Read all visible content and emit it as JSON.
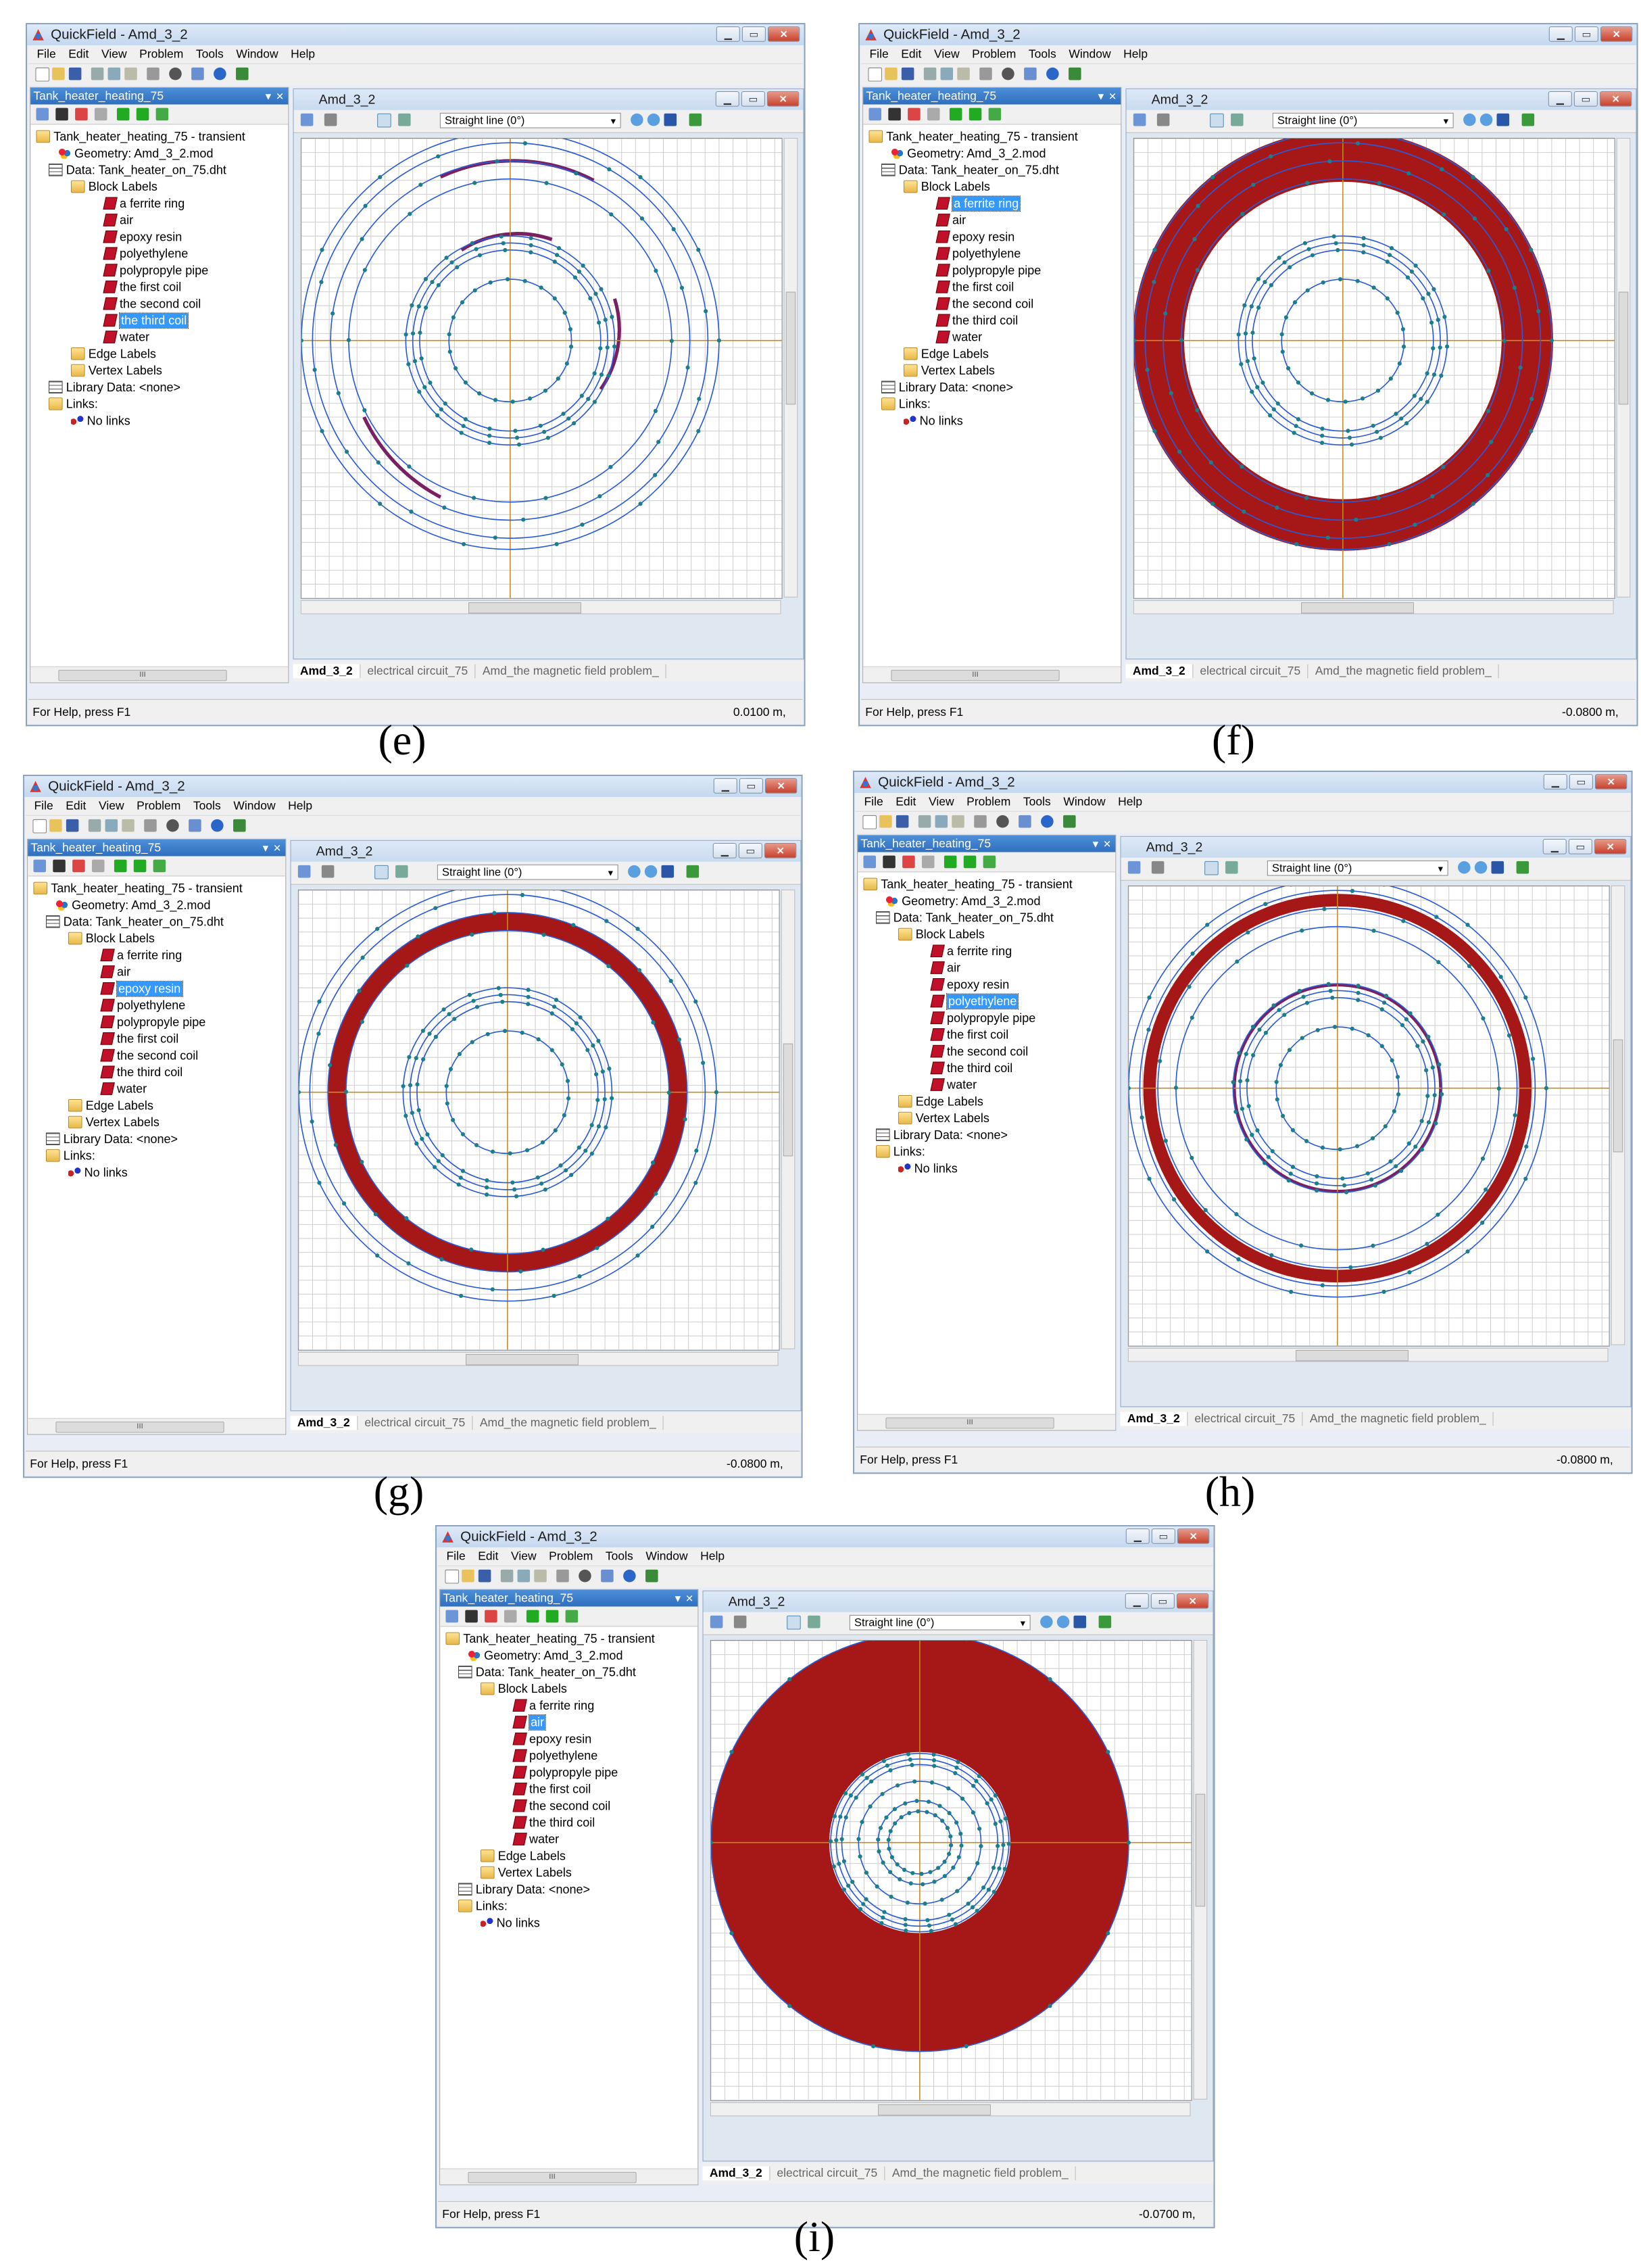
{
  "app": {
    "title": "QuickField - Amd_3_2",
    "menu": [
      "File",
      "Edit",
      "View",
      "Problem",
      "Tools",
      "Window",
      "Help"
    ],
    "sidebar_title": "Tank_heater_heating_75",
    "document_title": "Amd_3_2",
    "draw_mode": "Straight line (0°)",
    "tabs": [
      "Amd_3_2",
      "electrical circuit_75",
      "Amd_the magnetic field problem_"
    ],
    "status_help": "For Help, press F1",
    "scroll_thumb": "III",
    "tree": {
      "problem": "Tank_heater_heating_75 - transient",
      "geometry": "Geometry: Amd_3_2.mod",
      "data": "Data: Tank_heater_on_75.dht",
      "block_labels": "Block Labels",
      "blocks": [
        "a ferrite ring",
        "air",
        "epoxy resin",
        "polyethylene",
        "polypropyle pipe",
        "the first coil",
        "the second coil",
        "the third coil",
        "water"
      ],
      "edge_labels": "Edge Labels",
      "vertex_labels": "Vertex Labels",
      "library": "Library Data: <none>",
      "links": "Links:",
      "no_links": "No links"
    }
  },
  "panels": [
    {
      "caption": "(e)",
      "selected": "the third coil",
      "coord": "0.0100 m,"
    },
    {
      "caption": "(f)",
      "selected": "a ferrite ring",
      "coord": "-0.0800 m,"
    },
    {
      "caption": "(g)",
      "selected": "epoxy resin",
      "coord": "-0.0800 m,"
    },
    {
      "caption": "(h)",
      "selected": "polyethylene",
      "coord": "-0.0800 m,"
    },
    {
      "caption": "(i)",
      "selected": "air",
      "coord": "-0.0700 m,"
    }
  ],
  "colors": {
    "highlight": "#a61818",
    "geometry": "#2a5bd6",
    "grid": "#cfcfcf",
    "axis": "#c88a1e",
    "node": "#1b7f8a",
    "selection": "#3399ff"
  }
}
